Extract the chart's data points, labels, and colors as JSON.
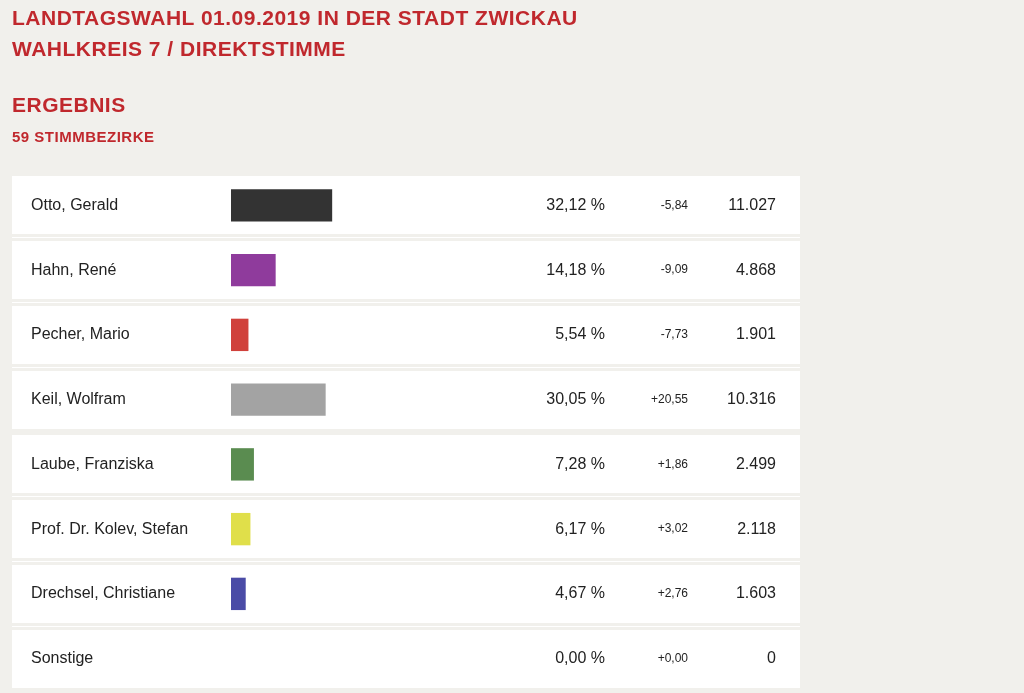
{
  "chart_data": {
    "type": "bar",
    "orientation": "horizontal",
    "title": "LANDTAGSWAHL 01.09.2019 IN DER STADT ZWICKAU",
    "subtitle": "WAHLKREIS 7 / DIREKTSTIMME",
    "categories": [
      "Otto, Gerald",
      "Hahn, René",
      "Pecher, Mario",
      "Keil, Wolfram",
      "Laube, Franziska",
      "Prof. Dr. Kolev, Stefan",
      "Drechsel, Christiane",
      "Sonstige"
    ],
    "values": [
      32.12,
      14.18,
      5.54,
      30.05,
      7.28,
      6.17,
      4.67,
      0.0
    ],
    "value_labels": [
      "32,12 %",
      "14,18 %",
      "5,54 %",
      "30,05 %",
      "7,28 %",
      "6,17 %",
      "4,67 %",
      "0,00 %"
    ],
    "colors": [
      "#333333",
      "#8f3b9c",
      "#d0413b",
      "#a3a3a3",
      "#5a8c50",
      "#e0df4a",
      "#4a4ba6",
      "#bbbbbb"
    ],
    "tick_labels": false,
    "annotations": [
      "ERGEBNIS",
      "59 STIMMBEZIRKE",
      "-5,84",
      "-9,09",
      "-7,73",
      "+20,55",
      "+1,86",
      "+3,02",
      "+2,76",
      "+0,00",
      "11.027",
      "4.868",
      "1.901",
      "10.316",
      "2.499",
      "2.118",
      "1.603",
      "0"
    ]
  }
}
